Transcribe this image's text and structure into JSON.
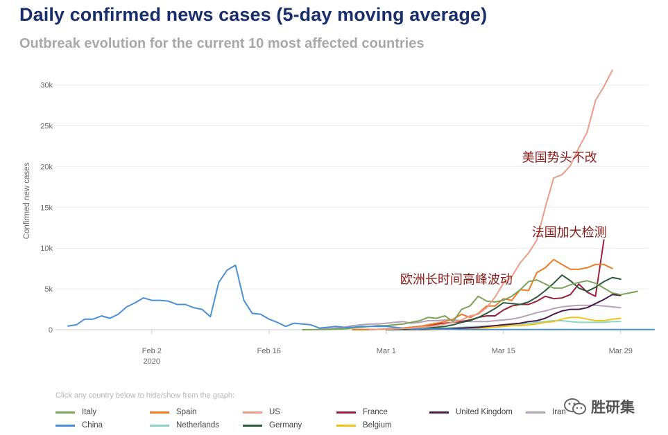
{
  "header": {
    "title": "Daily confirmed news cases (5-day moving average)",
    "subtitle": "Outbreak evolution for the current 10 most affected countries"
  },
  "legend_hint": "Click any country below to hide/show from the graph:",
  "watermark": {
    "text": "胜研集",
    "icon": "wechat-icon"
  },
  "colors": {
    "Italy": "#7aa35a",
    "Spain": "#f07a20",
    "US": "#ec9b88",
    "France": "#9a1f3a",
    "United Kingdom": "#4a1a48",
    "Iran": "#b3a1b8",
    "China": "#4a8fd6",
    "Netherlands": "#8ed1c6",
    "Germany": "#2a5a3a",
    "Belgium": "#f2c21b",
    "annotation": "#8b1a1a",
    "title": "#1a2e6b"
  },
  "chart_data": {
    "type": "line",
    "title": "Daily confirmed news cases (5-day moving average)",
    "subtitle": "Outbreak evolution for the current 10 most affected countries",
    "ylabel": "Confirmed new cases",
    "xlabel": "",
    "x_start": "2020-01-23",
    "x_end": "2020-04-02",
    "x_ticks": [
      {
        "day": 10,
        "label": "Feb 2",
        "sublabel": "2020"
      },
      {
        "day": 24,
        "label": "Feb 16",
        "sublabel": ""
      },
      {
        "day": 38,
        "label": "Mar 1",
        "sublabel": ""
      },
      {
        "day": 52,
        "label": "Mar 15",
        "sublabel": ""
      },
      {
        "day": 66,
        "label": "Mar 29",
        "sublabel": ""
      }
    ],
    "y_ticks": [
      {
        "value": 0,
        "label": "0"
      },
      {
        "value": 5000,
        "label": "5k"
      },
      {
        "value": 10000,
        "label": "10k"
      },
      {
        "value": 15000,
        "label": "15k"
      },
      {
        "value": 20000,
        "label": "20k"
      },
      {
        "value": 25000,
        "label": "25k"
      },
      {
        "value": 30000,
        "label": "30k"
      }
    ],
    "ylim": [
      0,
      32000
    ],
    "grid": true,
    "series": [
      {
        "name": "China",
        "start_day": 0,
        "values": [
          450,
          600,
          1300,
          1300,
          1700,
          1400,
          1900,
          2800,
          3300,
          3900,
          3600,
          3600,
          3500,
          3100,
          3100,
          2700,
          2500,
          1600,
          5800,
          7300,
          7900,
          3600,
          2000,
          1900,
          1300,
          900,
          400,
          800,
          700,
          600,
          200,
          300,
          400,
          300,
          300,
          400,
          400,
          400,
          400,
          300,
          200,
          100,
          100,
          100,
          50,
          50,
          50,
          30,
          30,
          20,
          20,
          20,
          20,
          20,
          20,
          20,
          20,
          20,
          20,
          20,
          20,
          20,
          20,
          20,
          20,
          20,
          20,
          20,
          20,
          20,
          20
        ]
      },
      {
        "name": "Italy",
        "start_day": 28,
        "values": [
          0,
          10,
          20,
          30,
          60,
          100,
          200,
          300,
          400,
          500,
          500,
          600,
          700,
          900,
          1100,
          1500,
          1400,
          1700,
          1000,
          2500,
          2900,
          4100,
          3500,
          3400,
          3600,
          4100,
          4900,
          5900,
          6100,
          5600,
          5100,
          5100,
          5500,
          5800,
          6000,
          5700,
          5100,
          4500,
          4300,
          4500,
          4700
        ]
      },
      {
        "name": "Spain",
        "start_day": 34,
        "values": [
          0,
          10,
          20,
          50,
          80,
          150,
          200,
          300,
          400,
          600,
          800,
          1000,
          1300,
          1900,
          1500,
          2000,
          2900,
          2900,
          3800,
          3600,
          4900,
          4800,
          7000,
          7600,
          8600,
          8000,
          7400,
          7400,
          7600,
          8000,
          8000,
          7500
        ]
      },
      {
        "name": "US",
        "start_day": 36,
        "values": [
          20,
          40,
          60,
          100,
          150,
          200,
          300,
          400,
          500,
          700,
          900,
          1200,
          1700,
          1900,
          2700,
          4000,
          5700,
          6500,
          8200,
          9400,
          11000,
          15000,
          18600,
          19000,
          20100,
          22300,
          24200,
          28100,
          29800,
          31800
        ]
      },
      {
        "name": "France",
        "start_day": 34,
        "values": [
          0,
          10,
          20,
          40,
          80,
          100,
          200,
          300,
          400,
          500,
          700,
          800,
          900,
          1000,
          1200,
          1500,
          1700,
          1700,
          2400,
          2900,
          3100,
          3100,
          3500,
          4100,
          3800,
          3900,
          4300,
          5600,
          4600,
          4100,
          11000
        ]
      },
      {
        "name": "United Kingdom",
        "start_day": 40,
        "values": [
          10,
          20,
          30,
          50,
          80,
          100,
          150,
          200,
          250,
          300,
          400,
          500,
          600,
          700,
          800,
          1000,
          1100,
          1400,
          1900,
          2300,
          2500,
          2500,
          2700,
          3200,
          3700,
          4300,
          4200
        ]
      },
      {
        "name": "Iran",
        "start_day": 30,
        "values": [
          50,
          100,
          200,
          300,
          500,
          600,
          700,
          700,
          800,
          900,
          1000,
          800,
          900,
          1100,
          1100,
          1200,
          1200,
          1100,
          1000,
          1000,
          1000,
          1100,
          1200,
          1300,
          1500,
          1800,
          2100,
          2300,
          2600,
          2800,
          2900,
          3000,
          3000,
          3000,
          2900,
          2800,
          2700
        ]
      },
      {
        "name": "Netherlands",
        "start_day": 38,
        "values": [
          0,
          10,
          20,
          30,
          50,
          100,
          150,
          200,
          250,
          300,
          350,
          400,
          450,
          500,
          550,
          600,
          700,
          800,
          900,
          1000,
          1100,
          1100,
          1000,
          900,
          900,
          900,
          900,
          1000,
          1000
        ]
      },
      {
        "name": "Germany",
        "start_day": 38,
        "values": [
          0,
          10,
          30,
          60,
          100,
          200,
          300,
          400,
          600,
          900,
          1100,
          1500,
          2000,
          2600,
          3300,
          3200,
          3100,
          3400,
          4000,
          4800,
          5700,
          6700,
          6000,
          5100,
          4700,
          5200,
          5900,
          6400,
          6200
        ]
      },
      {
        "name": "Belgium",
        "start_day": 42,
        "values": [
          0,
          10,
          20,
          50,
          80,
          100,
          150,
          200,
          250,
          300,
          400,
          500,
          500,
          600,
          700,
          900,
          1000,
          1300,
          1500,
          1500,
          1300,
          1100,
          1100,
          1300,
          1400
        ]
      }
    ],
    "annotations": [
      {
        "text": "美国势头不改",
        "series": "US"
      },
      {
        "text": "法国加大检测",
        "series": "France"
      },
      {
        "text": "欧洲长时间高峰波动",
        "series": "Italy"
      }
    ],
    "legend": [
      "Italy",
      "Spain",
      "US",
      "France",
      "United Kingdom",
      "Iran",
      "China",
      "Netherlands",
      "Germany",
      "Belgium"
    ]
  }
}
